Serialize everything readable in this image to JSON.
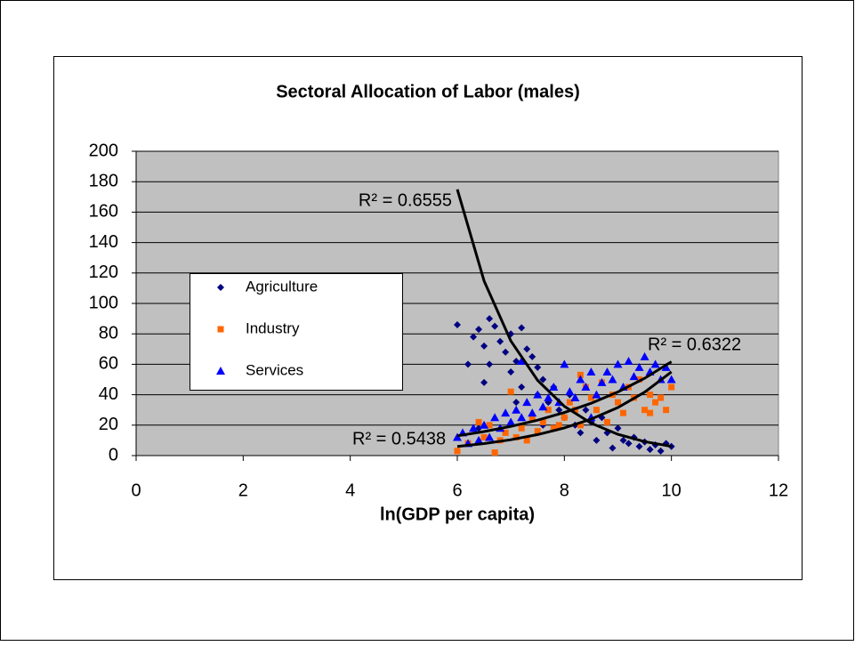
{
  "chart_data": {
    "type": "scatter",
    "title": "Sectoral Allocation of Labor (males)",
    "x_label": "ln(GDP per capita)",
    "xlim": [
      0,
      12
    ],
    "xticks": [
      0,
      2,
      4,
      6,
      8,
      10,
      12
    ],
    "ylim": [
      0,
      200
    ],
    "yticks": [
      0,
      20,
      40,
      60,
      80,
      100,
      120,
      140,
      160,
      180,
      200
    ],
    "grid": true,
    "series": [
      {
        "name": "Agriculture",
        "color": "#000080",
        "marker": "diamond",
        "x": [
          6.0,
          6.2,
          6.3,
          6.4,
          6.5,
          6.5,
          6.6,
          6.6,
          6.7,
          6.8,
          6.9,
          7.0,
          7.0,
          7.1,
          7.2,
          7.2,
          7.3,
          7.4,
          7.5,
          7.5,
          7.6,
          7.7,
          7.8,
          7.9,
          8.0,
          8.1,
          8.2,
          8.3,
          8.4,
          8.5,
          8.6,
          8.7,
          8.8,
          8.9,
          9.0,
          9.1,
          9.2,
          9.3,
          9.4,
          9.5,
          9.6,
          9.7,
          9.8,
          9.9,
          10.0,
          6.4,
          7.1,
          7.6
        ],
        "values": [
          86,
          60,
          78,
          83,
          72,
          48,
          90,
          60,
          85,
          75,
          68,
          80,
          55,
          62,
          84,
          45,
          70,
          65,
          58,
          40,
          50,
          35,
          45,
          30,
          25,
          40,
          20,
          15,
          30,
          22,
          10,
          25,
          15,
          5,
          18,
          10,
          8,
          12,
          6,
          9,
          4,
          7,
          3,
          8,
          6,
          18,
          35,
          20
        ]
      },
      {
        "name": "Industry",
        "color": "#ff6600",
        "marker": "square",
        "x": [
          6.0,
          6.2,
          6.4,
          6.5,
          6.6,
          6.7,
          6.8,
          6.9,
          7.0,
          7.1,
          7.2,
          7.3,
          7.4,
          7.5,
          7.6,
          7.7,
          7.8,
          7.9,
          8.0,
          8.1,
          8.2,
          8.3,
          8.4,
          8.5,
          8.6,
          8.7,
          8.8,
          8.9,
          9.0,
          9.1,
          9.2,
          9.3,
          9.4,
          9.5,
          9.6,
          9.7,
          9.8,
          9.9,
          10.0,
          8.3,
          9.6
        ],
        "values": [
          3,
          8,
          22,
          12,
          20,
          2,
          10,
          15,
          42,
          12,
          18,
          10,
          25,
          16,
          22,
          30,
          18,
          20,
          25,
          35,
          30,
          20,
          45,
          38,
          30,
          48,
          22,
          40,
          35,
          28,
          45,
          38,
          50,
          30,
          40,
          35,
          38,
          30,
          45,
          53,
          28
        ]
      },
      {
        "name": "Services",
        "color": "#0000ff",
        "marker": "triangle",
        "x": [
          6.0,
          6.1,
          6.2,
          6.3,
          6.4,
          6.5,
          6.6,
          6.7,
          6.8,
          6.9,
          7.0,
          7.1,
          7.2,
          7.3,
          7.4,
          7.5,
          7.6,
          7.7,
          7.8,
          7.9,
          8.0,
          8.1,
          8.2,
          8.3,
          8.4,
          8.5,
          8.6,
          8.7,
          8.8,
          8.9,
          9.0,
          9.1,
          9.2,
          9.3,
          9.4,
          9.5,
          9.6,
          9.7,
          9.8,
          9.9,
          10.0,
          8.5,
          7.2
        ],
        "values": [
          12,
          15,
          8,
          18,
          10,
          20,
          12,
          25,
          18,
          28,
          22,
          30,
          25,
          35,
          28,
          40,
          32,
          38,
          45,
          35,
          60,
          42,
          38,
          50,
          45,
          55,
          40,
          48,
          55,
          50,
          60,
          45,
          62,
          52,
          58,
          65,
          55,
          60,
          50,
          58,
          50,
          25,
          62
        ]
      }
    ],
    "trendlines": [
      {
        "label": "R² = 0.6555",
        "color": "#000000",
        "x": [
          6,
          6.5,
          7,
          7.5,
          8,
          8.5,
          9,
          9.5,
          10
        ],
        "values": [
          175,
          114.8,
          75.3,
          49.4,
          32.4,
          21.3,
          14.0,
          9.2,
          6.0
        ]
      },
      {
        "label": "R² = 0.6322",
        "color": "#000000",
        "x": [
          6,
          6.5,
          7,
          7.5,
          8,
          8.5,
          9,
          9.5,
          10
        ],
        "values": [
          13,
          15.8,
          19.2,
          23.3,
          28.3,
          34.4,
          41.8,
          50.8,
          61.7
        ]
      },
      {
        "label": "R² = 0.5438",
        "color": "#000000",
        "x": [
          6,
          6.5,
          7,
          7.5,
          8,
          8.5,
          9,
          9.5,
          10
        ],
        "values": [
          6,
          7.9,
          10.4,
          13.8,
          18.2,
          24.0,
          31.6,
          41.7,
          55.0
        ]
      }
    ]
  }
}
